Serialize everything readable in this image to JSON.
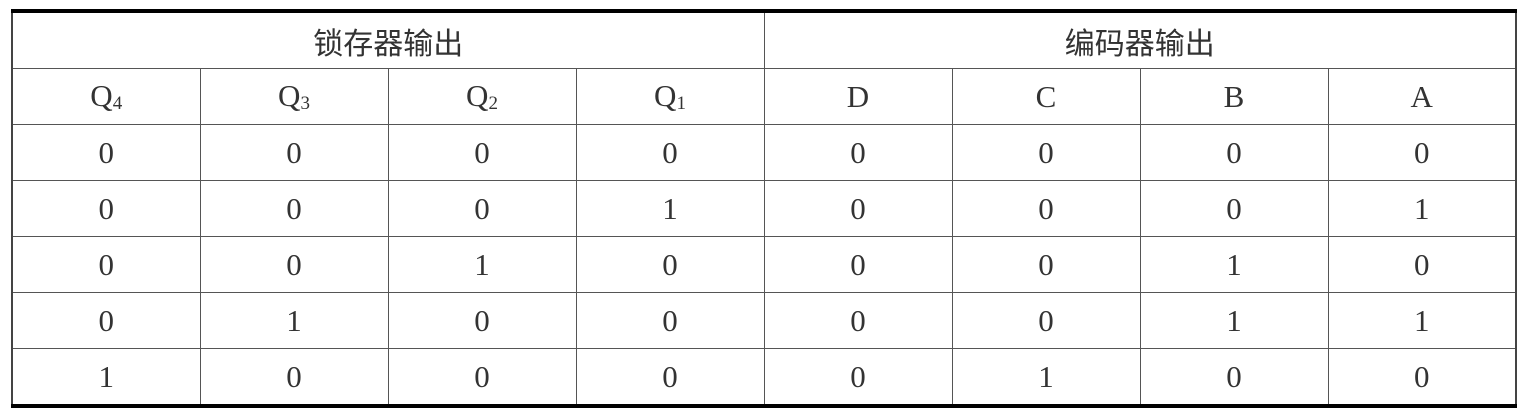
{
  "groups": [
    "锁存器输出",
    "编码器输出"
  ],
  "columns": [
    {
      "base": "Q",
      "sub": "4"
    },
    {
      "base": "Q",
      "sub": "3"
    },
    {
      "base": "Q",
      "sub": "2"
    },
    {
      "base": "Q",
      "sub": "1"
    },
    {
      "base": "D",
      "sub": ""
    },
    {
      "base": "C",
      "sub": ""
    },
    {
      "base": "B",
      "sub": ""
    },
    {
      "base": "A",
      "sub": ""
    }
  ],
  "rows": [
    [
      "0",
      "0",
      "0",
      "0",
      "0",
      "0",
      "0",
      "0"
    ],
    [
      "0",
      "0",
      "0",
      "1",
      "0",
      "0",
      "0",
      "1"
    ],
    [
      "0",
      "0",
      "1",
      "0",
      "0",
      "0",
      "1",
      "0"
    ],
    [
      "0",
      "1",
      "0",
      "0",
      "0",
      "0",
      "1",
      "1"
    ],
    [
      "1",
      "0",
      "0",
      "0",
      "0",
      "1",
      "0",
      "0"
    ]
  ]
}
